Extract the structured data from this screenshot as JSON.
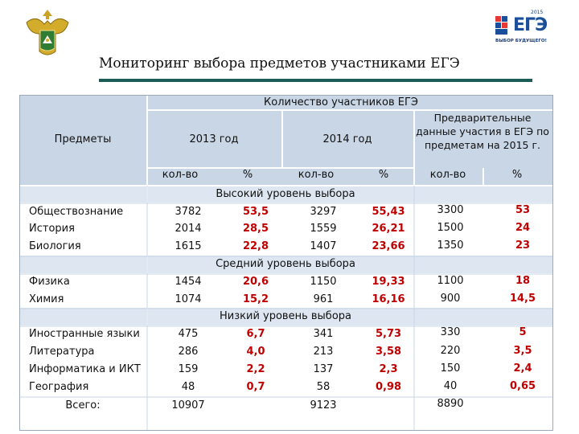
{
  "header": {
    "title": "Мониторинг выбора предметов участниками ЕГЭ",
    "logo": {
      "year": "2015",
      "brand": "ЕГЭ",
      "subtitle": "ВЫБОР БУДУЩЕГО!"
    },
    "emblem_icon": "coat-of-arms-icon"
  },
  "table": {
    "col_subjects": "Предметы",
    "group_header": "Количество участников ЕГЭ",
    "year_2013": "2013 год",
    "year_2014": "2014 год",
    "prelim_2015": "Предварительные данные участия в ЕГЭ по предметам на 2015 г.",
    "sub_count": "кол-во",
    "sub_pct": "%",
    "sections": [
      {
        "label": "Высокий уровень выбора",
        "rows": [
          {
            "subject": "Обществознание",
            "c2013": "3782",
            "p2013": "53,5",
            "c2014": "3297",
            "p2014": "55,43",
            "c2015": "3300",
            "p2015": "53"
          },
          {
            "subject": "История",
            "c2013": "2014",
            "p2013": "28,5",
            "c2014": "1559",
            "p2014": "26,21",
            "c2015": "1500",
            "p2015": "24"
          },
          {
            "subject": "Биология",
            "c2013": "1615",
            "p2013": "22,8",
            "c2014": "1407",
            "p2014": "23,66",
            "c2015": "1350",
            "p2015": "23"
          }
        ]
      },
      {
        "label": "Средний уровень выбора",
        "rows": [
          {
            "subject": "Физика",
            "c2013": "1454",
            "p2013": "20,6",
            "c2014": "1150",
            "p2014": "19,33",
            "c2015": "1100",
            "p2015": "18"
          },
          {
            "subject": "Химия",
            "c2013": "1074",
            "p2013": "15,2",
            "c2014": "961",
            "p2014": "16,16",
            "c2015": "900",
            "p2015": "14,5"
          }
        ]
      },
      {
        "label": "Низкий уровень выбора",
        "rows": [
          {
            "subject": "Иностранные языки",
            "c2013": "475",
            "p2013": "6,7",
            "c2014": "341",
            "p2014": "5,73",
            "c2015": "330",
            "p2015": "5"
          },
          {
            "subject": "Литература",
            "c2013": "286",
            "p2013": "4,0",
            "c2014": "213",
            "p2014": "3,58",
            "c2015": "220",
            "p2015": "3,5"
          },
          {
            "subject": "Информатика и ИКТ",
            "c2013": "159",
            "p2013": "2,2",
            "c2014": "137",
            "p2014": "2,3",
            "c2015": "150",
            "p2015": "2,4"
          },
          {
            "subject": "География",
            "c2013": "48",
            "p2013": "0,7",
            "c2014": "58",
            "p2014": "0,98",
            "c2015": "40",
            "p2015": "0,65"
          }
        ]
      }
    ],
    "total": {
      "label": "Всего:",
      "c2013": "10907",
      "c2014": "9123",
      "c2015": "8890"
    }
  },
  "colors": {
    "band": "#c9d6e6",
    "accent_line": "#1a5c56",
    "red_values": "#c00000",
    "blue_values": "#1f3f8f"
  }
}
